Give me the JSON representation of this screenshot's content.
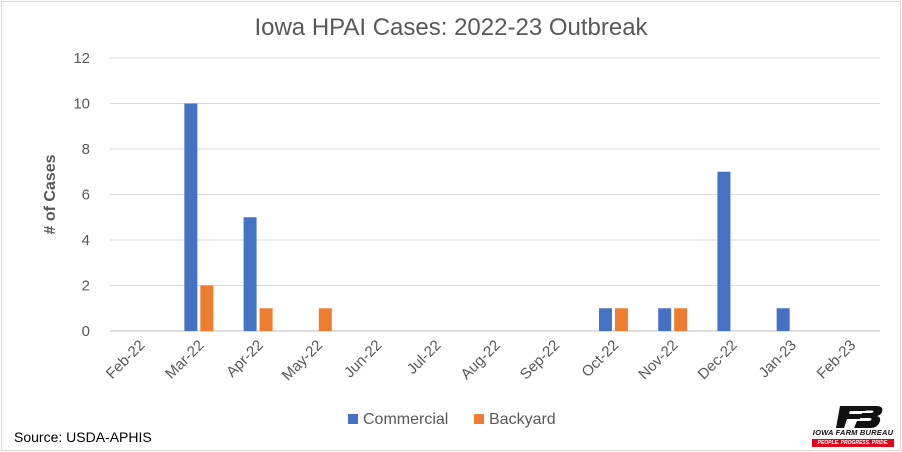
{
  "chart_data": {
    "type": "bar",
    "title": "Iowa HPAI Cases: 2022-23 Outbreak",
    "xlabel": "",
    "ylabel": "# of Cases",
    "ylim": [
      0,
      12
    ],
    "yticks": [
      0,
      2,
      4,
      6,
      8,
      10,
      12
    ],
    "grid": true,
    "legend_position": "bottom",
    "categories": [
      "Feb-22",
      "Mar-22",
      "Apr-22",
      "May-22",
      "Jun-22",
      "Jul-22",
      "Aug-22",
      "Sep-22",
      "Oct-22",
      "Nov-22",
      "Dec-22",
      "Jan-23",
      "Feb-23"
    ],
    "series": [
      {
        "name": "Commercial",
        "color": "#4472c4",
        "values": [
          0,
          10,
          5,
          0,
          0,
          0,
          0,
          0,
          1,
          1,
          7,
          1,
          0
        ]
      },
      {
        "name": "Backyard",
        "color": "#ed7d31",
        "values": [
          0,
          2,
          1,
          1,
          0,
          0,
          0,
          0,
          1,
          1,
          0,
          0,
          0
        ]
      }
    ]
  },
  "source": "Source: USDA-APHIS",
  "logo": {
    "name": "IOWA FARM BUREAU",
    "tagline": "PEOPLE. PROGRESS. PRIDE.",
    "accent_color": "#e2001a"
  }
}
